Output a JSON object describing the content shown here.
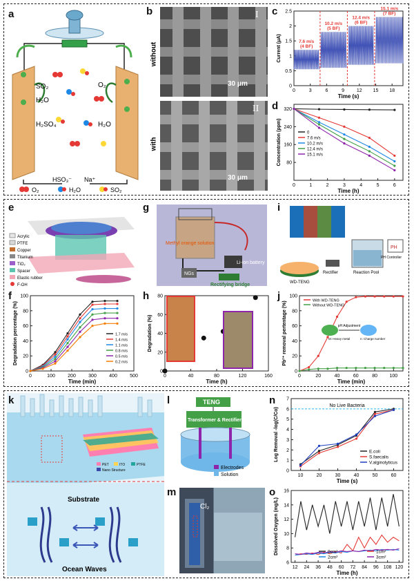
{
  "panel_labels": {
    "a": "a",
    "b": "b",
    "c": "c",
    "d": "d",
    "e": "e",
    "f": "f",
    "g": "g",
    "h": "h",
    "i": "i",
    "j": "j",
    "k": "k",
    "l": "l",
    "m": "m",
    "n": "n",
    "o": "o"
  },
  "panel_a": {
    "chem": [
      "SO₂",
      "H₂O",
      "H₂SO₄",
      "O₂",
      "H₂O"
    ],
    "bottom_ions": [
      "HSO₃⁻",
      "Na⁺"
    ],
    "legend": [
      "O₂",
      "H₂O",
      "SO₂"
    ],
    "colors": {
      "electrode": "#e8b170",
      "o2": "#e53935",
      "h2o": "#1e88e5",
      "so2": "#fdd835"
    }
  },
  "panel_b": {
    "row_labels": [
      "without",
      "with"
    ],
    "roman": [
      "I",
      "II"
    ],
    "scale": "30 μm"
  },
  "chart_data": [
    {
      "id": "c",
      "type": "line",
      "xlabel": "Time (s)",
      "ylabel": "Current (μA)",
      "xlim": [
        0,
        20
      ],
      "ylim": [
        0,
        2.5
      ],
      "xticks": [
        0,
        3,
        6,
        9,
        12,
        15,
        18
      ],
      "yticks": [
        0.0,
        0.5,
        1.0,
        1.5,
        2.0,
        2.5
      ],
      "segments": [
        {
          "x": [
            0,
            4.6
          ],
          "low": 0.55,
          "high": 1.2,
          "label": [
            "7.6 m/s",
            "(4 BF)"
          ]
        },
        {
          "x": [
            4.9,
            9.6
          ],
          "low": 0.6,
          "high": 1.8,
          "label": [
            "10.2 m/s",
            "(5 BF)"
          ]
        },
        {
          "x": [
            10,
            14.6
          ],
          "low": 0.7,
          "high": 2.0,
          "label": [
            "12.4 m/s",
            "(6 BF)"
          ]
        },
        {
          "x": [
            15,
            20
          ],
          "low": 0.75,
          "high": 2.3,
          "label": [
            "15.1 m/s",
            "(7 BF)"
          ]
        }
      ],
      "dividers": [
        4.8,
        9.8,
        14.8
      ]
    },
    {
      "id": "d",
      "type": "line",
      "xlabel": "Time (h)",
      "ylabel": "Concentration (ppm)",
      "xlim": [
        0,
        6.5
      ],
      "ylim": [
        0,
        340
      ],
      "xticks": [
        0,
        1,
        2,
        3,
        4,
        5,
        6
      ],
      "yticks": [
        80,
        160,
        240,
        320
      ],
      "x": [
        0,
        1.5,
        3,
        4.5,
        6
      ],
      "series": [
        {
          "name": "0",
          "color": "#222222",
          "values": [
            320,
            318,
            317,
            316,
            315
          ]
        },
        {
          "name": "7.6 m/s",
          "color": "#e53935",
          "values": [
            320,
            280,
            240,
            190,
            110
          ]
        },
        {
          "name": "10.2 m/s",
          "color": "#1e88e5",
          "values": [
            320,
            260,
            205,
            150,
            85
          ]
        },
        {
          "name": "12.4 m/s",
          "color": "#43a047",
          "values": [
            320,
            250,
            185,
            130,
            65
          ]
        },
        {
          "name": "15.1 m/s",
          "color": "#8e24aa",
          "values": [
            320,
            235,
            165,
            110,
            45
          ]
        }
      ]
    },
    {
      "id": "f",
      "type": "line",
      "xlabel": "Time (min)",
      "ylabel": "Degradation percentage (%)",
      "xlim": [
        0,
        500
      ],
      "ylim": [
        0,
        100
      ],
      "xticks": [
        0,
        100,
        200,
        300,
        400,
        500
      ],
      "yticks": [
        0,
        20,
        40,
        60,
        80,
        100
      ],
      "x": [
        0,
        60,
        120,
        180,
        240,
        300,
        360,
        420
      ],
      "series": [
        {
          "name": "1.7 m/s",
          "color": "#222222",
          "values": [
            0,
            8,
            25,
            50,
            75,
            92,
            93,
            93
          ]
        },
        {
          "name": "1.4 m/s",
          "color": "#e53935",
          "values": [
            0,
            7,
            22,
            46,
            70,
            88,
            89,
            89
          ]
        },
        {
          "name": "1.1 m/s",
          "color": "#1e88e5",
          "values": [
            0,
            6,
            19,
            42,
            65,
            82,
            83,
            83
          ]
        },
        {
          "name": "0.8 m/s",
          "color": "#43a047",
          "values": [
            0,
            5,
            16,
            37,
            58,
            75,
            77,
            77
          ]
        },
        {
          "name": "0.5 m/s",
          "color": "#8e24aa",
          "values": [
            0,
            4,
            13,
            32,
            52,
            68,
            70,
            70
          ]
        },
        {
          "name": "0.2 m/s",
          "color": "#f57c00",
          "values": [
            0,
            3,
            10,
            27,
            45,
            60,
            63,
            63
          ]
        }
      ]
    },
    {
      "id": "h",
      "type": "scatter",
      "xlabel": "Time (h)",
      "ylabel": "Degradation (%)",
      "xlim": [
        0,
        160
      ],
      "ylim": [
        0,
        80
      ],
      "xticks": [
        0,
        40,
        80,
        120,
        160
      ],
      "yticks": [
        0,
        20,
        40,
        60,
        80
      ],
      "points": [
        [
          0,
          0
        ],
        [
          18,
          15
        ],
        [
          40,
          25
        ],
        [
          60,
          35
        ],
        [
          90,
          42
        ],
        [
          110,
          55
        ],
        [
          140,
          78
        ]
      ]
    },
    {
      "id": "j",
      "type": "line",
      "xlabel": "Time (min)",
      "ylabel": "Pb²⁺ removal pertentage (%)",
      "xlim": [
        0,
        110
      ],
      "ylim": [
        0,
        100
      ],
      "xticks": [
        0,
        20,
        40,
        60,
        80,
        100
      ],
      "yticks": [
        0,
        20,
        40,
        60,
        80,
        100
      ],
      "x": [
        0,
        10,
        20,
        30,
        40,
        50,
        60,
        70,
        80,
        90,
        100,
        110
      ],
      "series": [
        {
          "name": "With WD-TENG",
          "color": "#e53935",
          "values": [
            0,
            5,
            20,
            45,
            72,
            92,
            98,
            99,
            99,
            99,
            99,
            99
          ]
        },
        {
          "name": "Without WD-TENG",
          "color": "#43a047",
          "values": [
            0,
            2,
            3,
            3,
            4,
            4,
            4,
            4,
            4,
            4,
            4,
            4
          ]
        }
      ],
      "annot": [
        "pH Adjustment",
        "M: Heavy metal",
        "n: Charge number"
      ]
    },
    {
      "id": "n",
      "type": "line",
      "xlabel": "Time (s)",
      "ylabel": "Log Removal -log(C/Co)",
      "xlim": [
        5,
        65
      ],
      "ylim": [
        0,
        7
      ],
      "xticks": [
        10,
        20,
        30,
        40,
        50,
        60
      ],
      "yticks": [
        0,
        1,
        2,
        3,
        4,
        5,
        6,
        7
      ],
      "x": [
        10,
        20,
        30,
        40,
        50,
        60
      ],
      "threshold": 6,
      "threshold_label": "No Live Bacteria",
      "series": [
        {
          "name": "E.coli",
          "color": "#222222",
          "values": [
            0.6,
            1.9,
            2.5,
            3.4,
            5.7,
            6.0
          ]
        },
        {
          "name": "S.faecalis",
          "color": "#e53935",
          "values": [
            0.4,
            1.7,
            2.3,
            3.1,
            5.5,
            5.9
          ]
        },
        {
          "name": "V.alginolyticus",
          "color": "#1e3fbf",
          "values": [
            0.5,
            2.4,
            2.6,
            3.5,
            5.3,
            5.9
          ]
        }
      ]
    },
    {
      "id": "o",
      "type": "line",
      "xlabel": "Time (h)",
      "ylabel": "Dissolved Oxygen (mg/L)",
      "xlim": [
        8,
        124
      ],
      "ylim": [
        6,
        16
      ],
      "xticks": [
        12,
        24,
        36,
        48,
        60,
        72,
        84,
        96,
        108,
        120
      ],
      "yticks": [
        6,
        8,
        10,
        12,
        14,
        16
      ],
      "x": [
        12,
        18,
        24,
        30,
        36,
        42,
        48,
        54,
        60,
        66,
        72,
        78,
        84,
        90,
        96,
        102,
        108,
        114,
        120
      ],
      "series": [
        {
          "name": "0cm²",
          "color": "#222222",
          "values": [
            9.5,
            14.5,
            10.5,
            14,
            11,
            14,
            10,
            14.5,
            11,
            14.5,
            10.5,
            14.5,
            11,
            15,
            10.5,
            15,
            11,
            15.5,
            11
          ]
        },
        {
          "name": "1cm²",
          "color": "#e53935",
          "values": [
            7,
            7.2,
            7.1,
            7.3,
            7.1,
            7.4,
            7.2,
            7.5,
            7.3,
            8.5,
            7.6,
            9.5,
            8,
            9.5,
            8.5,
            9.8,
            8.8,
            9.5,
            9
          ]
        },
        {
          "name": "2cm²",
          "color": "#1e88e5",
          "values": [
            7,
            7.1,
            7.2,
            7.1,
            7.3,
            7.2,
            7.4,
            7.3,
            7.5,
            7.4,
            7.6,
            7.5,
            7.6,
            7.7,
            7.6,
            7.8,
            7.7,
            7.8,
            7.7
          ]
        },
        {
          "name": "3cm²",
          "color": "#8e24aa",
          "values": [
            7.2,
            7.1,
            7.3,
            7.2,
            7.4,
            7.3,
            7.5,
            7.4,
            7.6,
            7.5,
            7.6,
            7.5,
            7.7,
            7.6,
            7.8,
            7.7,
            7.8,
            7.7,
            7.9
          ]
        }
      ]
    }
  ],
  "panel_e": {
    "legend": [
      "Acrylic",
      "PTFE",
      "Copper",
      "Titanium",
      "TiO₂",
      "Spacer",
      "Elastic rubber",
      "F-OH"
    ]
  },
  "panel_g": {
    "labels": [
      "Methyl orange solution",
      "Li-ion battery",
      "NGs",
      "Rectifying bridge"
    ]
  },
  "panel_i": {
    "labels": [
      "WD-TENG",
      "Rectifier",
      "Reaction Pool",
      "PH Controller"
    ],
    "ph": "PH"
  },
  "panel_k": {
    "labels": [
      "Substrate",
      "Ocean Waves"
    ],
    "legend": [
      "PET",
      "ITO",
      "PTFE",
      "Nano Structure"
    ]
  },
  "panel_l": {
    "teng": "TENG",
    "box": "Transformer & Rectifier",
    "legend": [
      "Electrodes",
      "Solution"
    ]
  },
  "panel_m": {
    "label": "Cl₂"
  }
}
